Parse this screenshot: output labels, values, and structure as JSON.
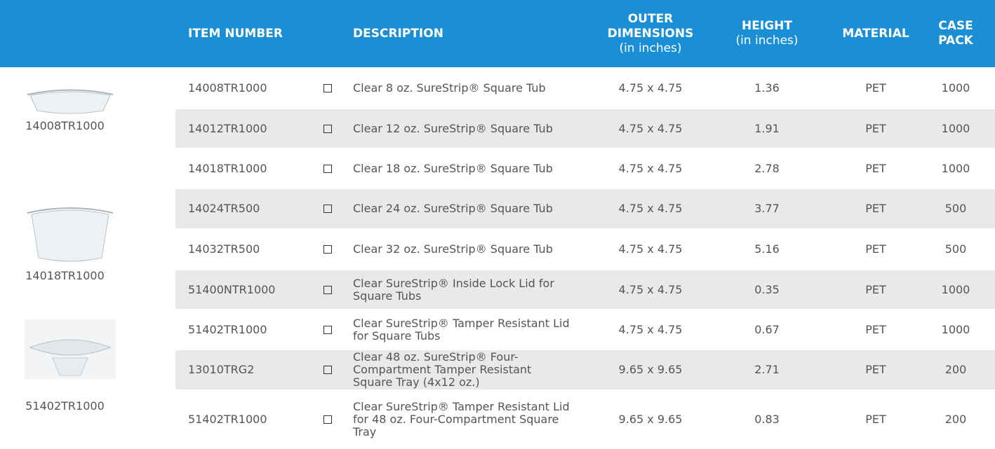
{
  "header": {
    "columns": [
      {
        "label": "ITEM NUMBER"
      },
      {
        "label": "DESCRIPTION"
      },
      {
        "label": "OUTER DIMENSIONS",
        "unit": "(in inches)"
      },
      {
        "label": "HEIGHT",
        "unit": "(in inches)"
      },
      {
        "label": "MATERIAL"
      },
      {
        "label": "CASE PACK"
      }
    ]
  },
  "images": [
    {
      "caption": "14008TR1000"
    },
    {
      "caption": "14018TR1000"
    },
    {
      "caption": "51402TR1000"
    }
  ],
  "table": {
    "rows": [
      [
        "14008TR1000",
        "Clear 8 oz. SureStrip® Square Tub",
        "4.75 x 4.75",
        "1.36",
        "PET",
        "1000"
      ],
      [
        "14012TR1000",
        "Clear 12 oz. SureStrip® Square Tub",
        "4.75 x 4.75",
        "1.91",
        "PET",
        "1000"
      ],
      [
        "14018TR1000",
        "Clear 18 oz. SureStrip® Square Tub",
        "4.75 x 4.75",
        "2.78",
        "PET",
        "1000"
      ],
      [
        "14024TR500",
        "Clear 24 oz. SureStrip® Square Tub",
        "4.75 x 4.75",
        "3.77",
        "PET",
        "500"
      ],
      [
        "14032TR500",
        "Clear 32 oz. SureStrip® Square Tub",
        "4.75 x 4.75",
        "5.16",
        "PET",
        "500"
      ],
      [
        "51400NTR1000",
        "Clear SureStrip® Inside Lock Lid for Square Tubs",
        "4.75 x 4.75",
        "0.35",
        "PET",
        "1000"
      ],
      [
        "51402TR1000",
        "Clear SureStrip® Tamper Resistant Lid for Square Tubs",
        "4.75 x 4.75",
        "0.67",
        "PET",
        "1000"
      ],
      [
        "13010TRG2",
        "Clear 48 oz. SureStrip® Four-Compartment Tamper Resistant Square Tray (4x12 oz.)",
        "9.65 x 9.65",
        "2.71",
        "PET",
        "200"
      ],
      [
        "51402TR1000",
        "Clear SureStrip® Tamper Resistant Lid for 48 oz. Four-Compartment Square Tray",
        "9.65 x 9.65",
        "0.83",
        "PET",
        "200"
      ]
    ]
  }
}
